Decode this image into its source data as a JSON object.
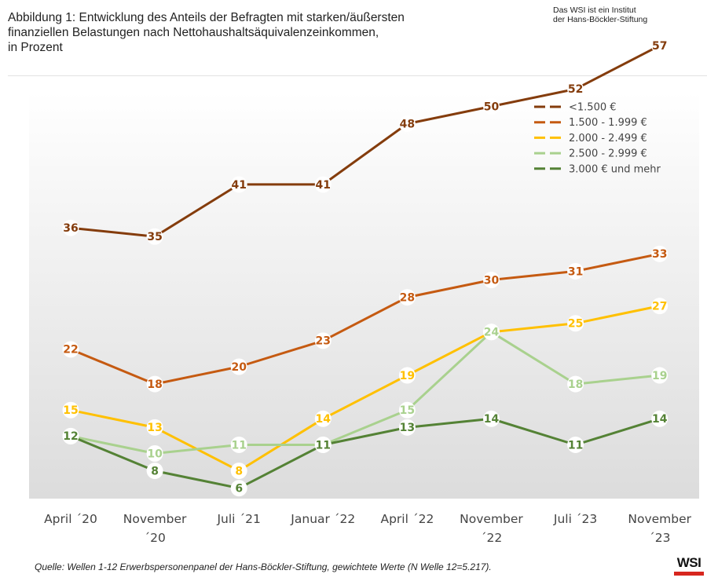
{
  "header": {
    "title_lines": [
      "Abbildung 1: Entwicklung des Anteils der Befragten mit starken/äußersten",
      "finanziellen Belastungen nach Nettohaushaltsäquivalenzeinkommen,",
      "in Prozent"
    ],
    "institute_lines": [
      "Das WSI ist ein Institut",
      "der Hans-Böckler-Stiftung"
    ]
  },
  "chart_data": {
    "type": "line",
    "title": "Abbildung 1: Entwicklung des Anteils der Befragten mit starken/äußersten finanziellen Belastungen nach Nettohaushaltsäquivalenzeinkommen, in Prozent",
    "xlabel": "",
    "ylabel": "",
    "ylim": [
      0,
      62
    ],
    "grid": false,
    "legend_position": "top-right",
    "categories": [
      [
        "April ´20"
      ],
      [
        "November",
        "´20"
      ],
      [
        "Juli ´21"
      ],
      [
        "Januar ´22"
      ],
      [
        "April ´22"
      ],
      [
        "November",
        "´22"
      ],
      [
        "Juli ´23"
      ],
      [
        "November",
        "´23"
      ]
    ],
    "series": [
      {
        "name": "<1.500 €",
        "color": "#843c0c",
        "values": [
          36,
          35,
          41,
          41,
          48,
          50,
          52,
          57
        ]
      },
      {
        "name": "1.500 - 1.999 €",
        "color": "#c55a11",
        "values": [
          22,
          18,
          20,
          23,
          28,
          30,
          31,
          33
        ]
      },
      {
        "name": "2.000 - 2.499 €",
        "color": "#ffc000",
        "values": [
          15,
          13,
          8,
          14,
          19,
          24,
          25,
          27
        ]
      },
      {
        "name": "2.500 - 2.999 €",
        "color": "#a9d18e",
        "values": [
          12,
          10,
          11,
          11,
          15,
          24,
          18,
          19
        ]
      },
      {
        "name": "3.000 € und mehr",
        "color": "#548235",
        "values": [
          12,
          8,
          6,
          11,
          13,
          14,
          11,
          14
        ]
      }
    ]
  },
  "footer": {
    "source": "Quelle: Wellen 1-12 Erwerbspersonenpanel der Hans-Böckler-Stiftung, gewichtete Werte (N Welle 12=5.217).",
    "logo": "WSI",
    "logo_color": "#d7261e"
  }
}
